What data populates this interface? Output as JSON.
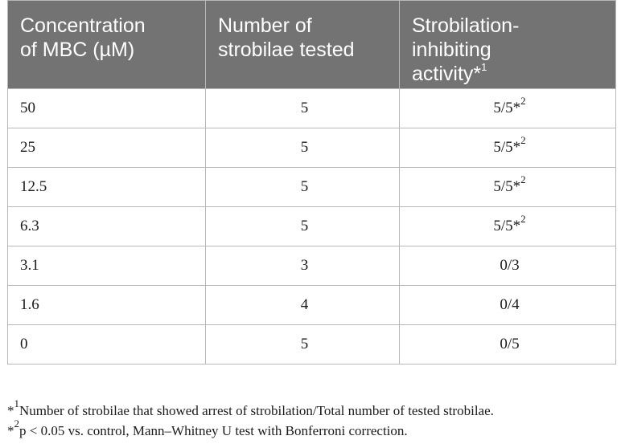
{
  "table": {
    "headers": [
      [
        "Concentration",
        "of MBC (µM)"
      ],
      [
        "Number of",
        "strobilae tested"
      ],
      [
        "Strobilation-",
        "inhibiting",
        "activity*",
        "1"
      ]
    ],
    "rows": [
      {
        "concentration": "50",
        "number": "5",
        "activity": "5/5*",
        "activity_sup": "2"
      },
      {
        "concentration": "25",
        "number": "5",
        "activity": "5/5*",
        "activity_sup": "2"
      },
      {
        "concentration": "12.5",
        "number": "5",
        "activity": "5/5*",
        "activity_sup": "2"
      },
      {
        "concentration": "6.3",
        "number": "5",
        "activity": "5/5*",
        "activity_sup": "2"
      },
      {
        "concentration": "3.1",
        "number": "3",
        "activity": "0/3",
        "activity_sup": ""
      },
      {
        "concentration": "1.6",
        "number": "4",
        "activity": "0/4",
        "activity_sup": ""
      },
      {
        "concentration": "0",
        "number": "5",
        "activity": "0/5",
        "activity_sup": ""
      }
    ]
  },
  "footnotes": [
    {
      "marker": "*",
      "sup": "1",
      "text": "Number of strobilae that showed arrest of strobilation/Total number of tested strobilae."
    },
    {
      "marker": "*",
      "sup": "2",
      "text": "p < 0.05 vs. control, Mann–Whitney U test with Bonferroni correction."
    }
  ],
  "colors": {
    "header_bg": "#737373",
    "header_text": "#ffffff",
    "border": "#b8b8b8"
  }
}
